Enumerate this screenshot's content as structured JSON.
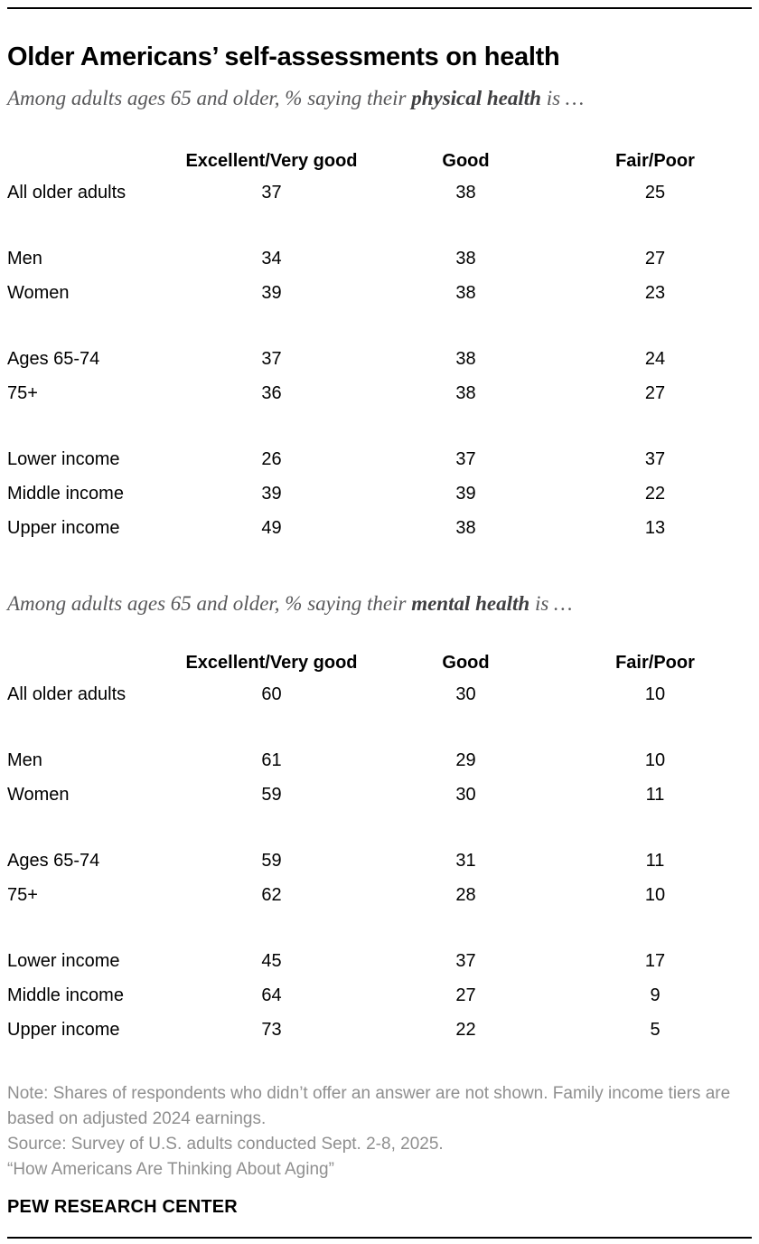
{
  "page": {
    "title": "Older Americans’ self-assessments on health",
    "brand": "PEW RESEARCH CENTER"
  },
  "footer": {
    "note": "Note: Shares of respondents who didn’t offer an answer are not shown. Family income tiers are based on adjusted 2024 earnings.",
    "source": "Source: Survey of U.S. adults conducted Sept. 2-8, 2025.",
    "report_title": "“How Americans Are Thinking About Aging”"
  },
  "colors": {
    "text": "#000000",
    "subtitle_gray": "#58585a",
    "subtitle_bold_gray": "#3f3f41",
    "footer_gray": "#8f8f8f",
    "rule": "#000000"
  },
  "chart_data": [
    {
      "type": "table",
      "subtitle_prefix": "Among adults ages 65 and older, % saying their ",
      "subtitle_bold": "physical health",
      "subtitle_suffix": " is …",
      "columns": [
        "Excellent/Very good",
        "Good",
        "Fair/Poor"
      ],
      "rows": [
        {
          "label": "All older adults",
          "values": [
            37,
            38,
            25
          ]
        },
        {
          "label": "Men",
          "values": [
            34,
            38,
            27
          ]
        },
        {
          "label": "Women",
          "values": [
            39,
            38,
            23
          ]
        },
        {
          "label": "Ages 65-74",
          "values": [
            37,
            38,
            24
          ]
        },
        {
          "label": "75+",
          "values": [
            36,
            38,
            27
          ]
        },
        {
          "label": "Lower income",
          "values": [
            26,
            37,
            37
          ]
        },
        {
          "label": "Middle income",
          "values": [
            39,
            39,
            22
          ]
        },
        {
          "label": "Upper income",
          "values": [
            49,
            38,
            13
          ]
        }
      ],
      "row_groups": [
        [
          0
        ],
        [
          1,
          2
        ],
        [
          3,
          4
        ],
        [
          5,
          6,
          7
        ]
      ]
    },
    {
      "type": "table",
      "subtitle_prefix": "Among adults ages 65 and older, % saying their ",
      "subtitle_bold": "mental health",
      "subtitle_suffix": " is …",
      "columns": [
        "Excellent/Very good",
        "Good",
        "Fair/Poor"
      ],
      "rows": [
        {
          "label": "All older adults",
          "values": [
            60,
            30,
            10
          ]
        },
        {
          "label": "Men",
          "values": [
            61,
            29,
            10
          ]
        },
        {
          "label": "Women",
          "values": [
            59,
            30,
            11
          ]
        },
        {
          "label": "Ages 65-74",
          "values": [
            59,
            31,
            11
          ]
        },
        {
          "label": "75+",
          "values": [
            62,
            28,
            10
          ]
        },
        {
          "label": "Lower income",
          "values": [
            45,
            37,
            17
          ]
        },
        {
          "label": "Middle income",
          "values": [
            64,
            27,
            9
          ]
        },
        {
          "label": "Upper income",
          "values": [
            73,
            22,
            5
          ]
        }
      ],
      "row_groups": [
        [
          0
        ],
        [
          1,
          2
        ],
        [
          3,
          4
        ],
        [
          5,
          6,
          7
        ]
      ]
    }
  ]
}
